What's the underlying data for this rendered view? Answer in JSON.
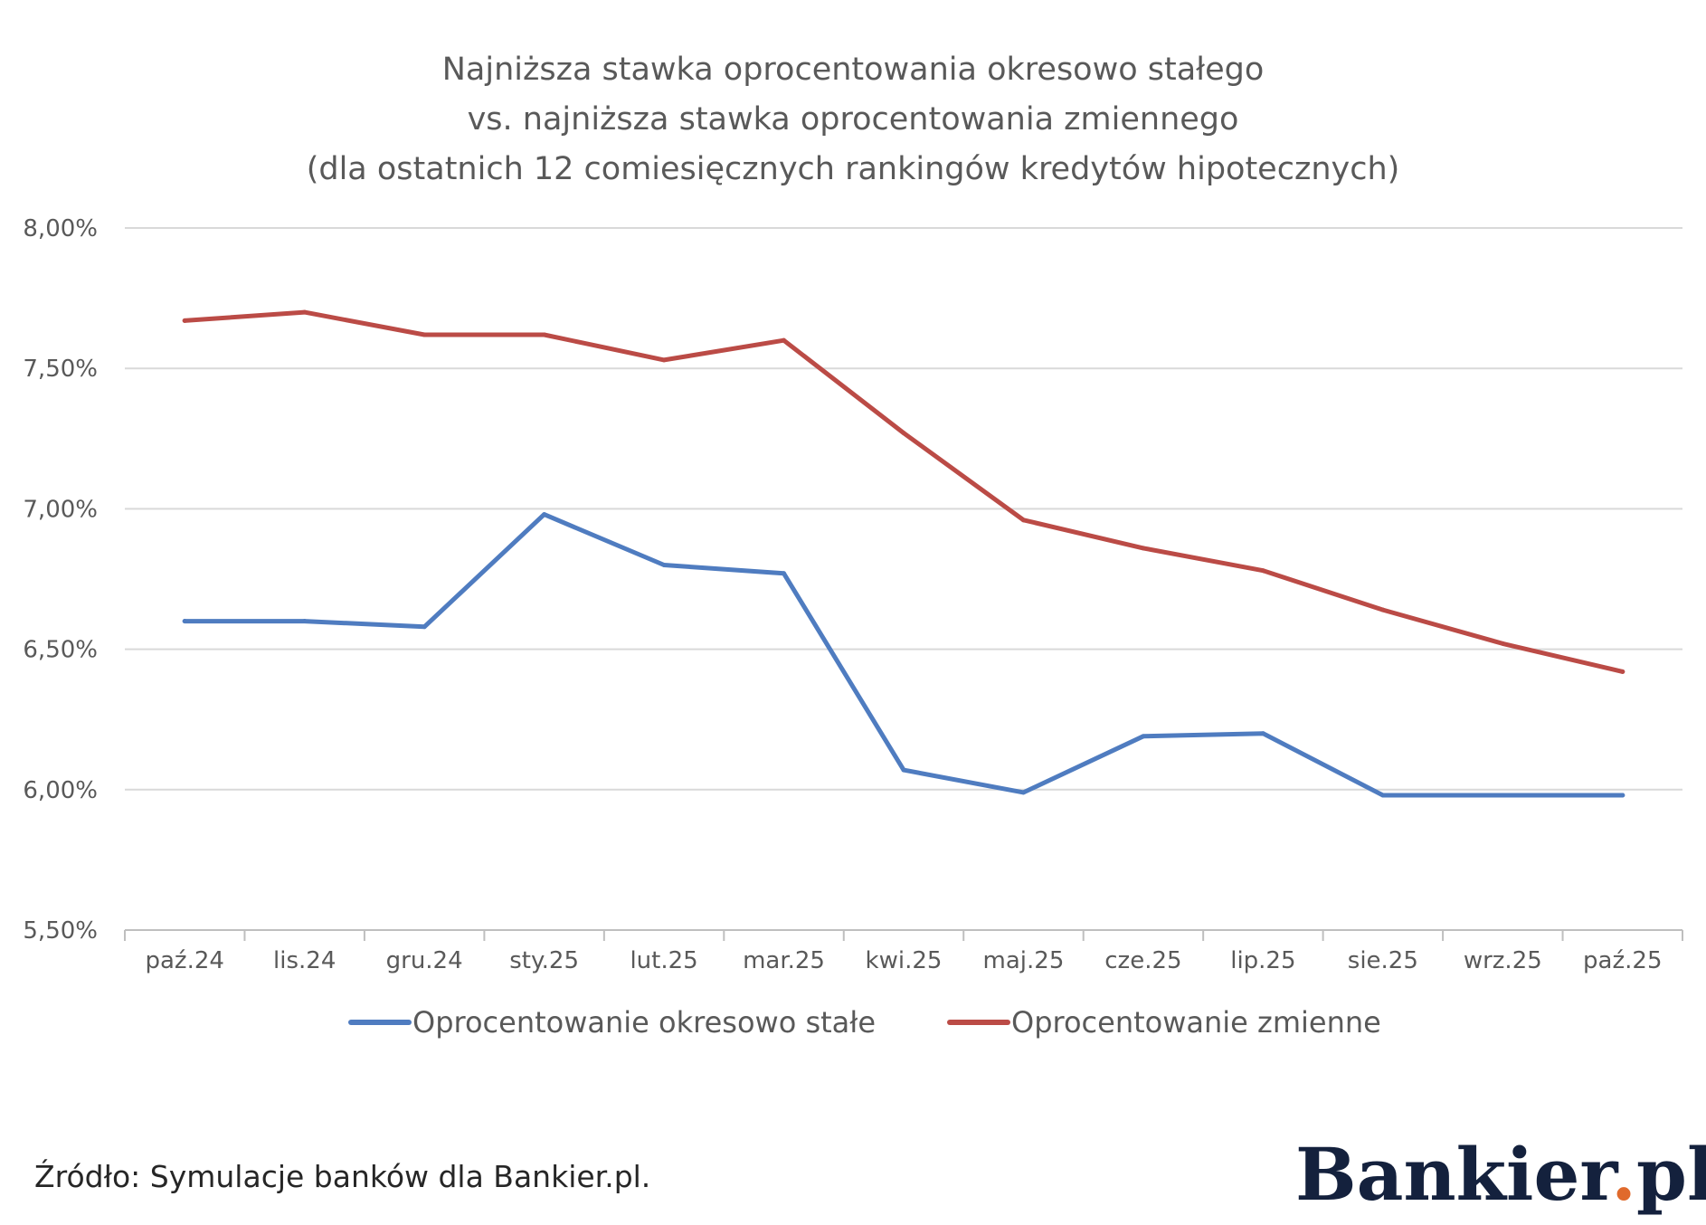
{
  "chart_data": {
    "type": "line",
    "title": [
      "Najniższa stawka oprocentowania okresowo stałego",
      "vs. najniższa stawka oprocentowania zmiennego",
      "(dla ostatnich 12 comiesięcznych  rankingów kredytów hipotecznych)"
    ],
    "categories": [
      "paź.24",
      "lis.24",
      "gru.24",
      "sty.25",
      "lut.25",
      "mar.25",
      "kwi.25",
      "maj.25",
      "cze.25",
      "lip.25",
      "sie.25",
      "wrz.25",
      "paź.25"
    ],
    "ylim": [
      5.5,
      8.0
    ],
    "yticks": [
      5.5,
      6.0,
      6.5,
      7.0,
      7.5,
      8.0
    ],
    "ytick_labels": [
      "5,50%",
      "6,00%",
      "6,50%",
      "7,00%",
      "7,50%",
      "8,00%"
    ],
    "grid": true,
    "legend_position": "bottom",
    "series": [
      {
        "name": "Oprocentowanie okresowo stałe",
        "color": "#4f7cc0",
        "values": [
          6.6,
          6.6,
          6.58,
          6.98,
          6.8,
          6.77,
          6.07,
          5.99,
          6.19,
          6.2,
          5.98,
          5.98,
          5.98
        ]
      },
      {
        "name": "Oprocentowanie zmienne",
        "color": "#bb4b46",
        "values": [
          7.67,
          7.7,
          7.62,
          7.62,
          7.53,
          7.6,
          7.27,
          6.96,
          6.86,
          6.78,
          6.64,
          6.52,
          6.42
        ]
      }
    ]
  },
  "source": "Źródło: Symulacje banków dla Bankier.pl.",
  "logo": {
    "name": "Bankier",
    "dot": ".",
    "suffix": "pl",
    "brand_color": "#14213d",
    "accent_color": "#e06a2c"
  }
}
